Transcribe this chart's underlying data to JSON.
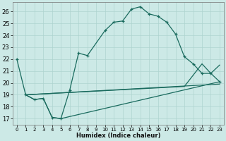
{
  "xlabel": "Humidex (Indice chaleur)",
  "xlim": [
    -0.5,
    23.5
  ],
  "ylim": [
    16.5,
    26.8
  ],
  "yticks": [
    17,
    18,
    19,
    20,
    21,
    22,
    23,
    24,
    25,
    26
  ],
  "xticks": [
    0,
    1,
    2,
    3,
    4,
    5,
    6,
    7,
    8,
    9,
    10,
    11,
    12,
    13,
    14,
    15,
    16,
    17,
    18,
    19,
    20,
    21,
    22,
    23
  ],
  "bg_color": "#cce9e6",
  "line_color": "#1a6b5e",
  "grid_color": "#aed4d0",
  "main_series": {
    "x": [
      0,
      1,
      2,
      3,
      4,
      5,
      6,
      7,
      8,
      10,
      11,
      12,
      13,
      14,
      15,
      16,
      17,
      18,
      19,
      20,
      21,
      22,
      23
    ],
    "y": [
      22.0,
      19.0,
      18.6,
      18.7,
      17.1,
      17.0,
      19.4,
      22.5,
      22.3,
      24.4,
      25.1,
      25.2,
      26.2,
      26.4,
      25.8,
      25.6,
      25.1,
      24.1,
      22.2,
      21.6,
      20.8,
      20.8,
      20.1
    ]
  },
  "line2": {
    "x": [
      1,
      2,
      3,
      4,
      5,
      23
    ],
    "y": [
      19.0,
      18.6,
      18.7,
      17.1,
      17.0,
      20.1
    ]
  },
  "line3": {
    "x": [
      1,
      23
    ],
    "y": [
      19.0,
      19.9
    ]
  },
  "line4": {
    "x": [
      1,
      19,
      21,
      22,
      23
    ],
    "y": [
      19.0,
      19.7,
      21.6,
      20.8,
      21.5
    ]
  }
}
